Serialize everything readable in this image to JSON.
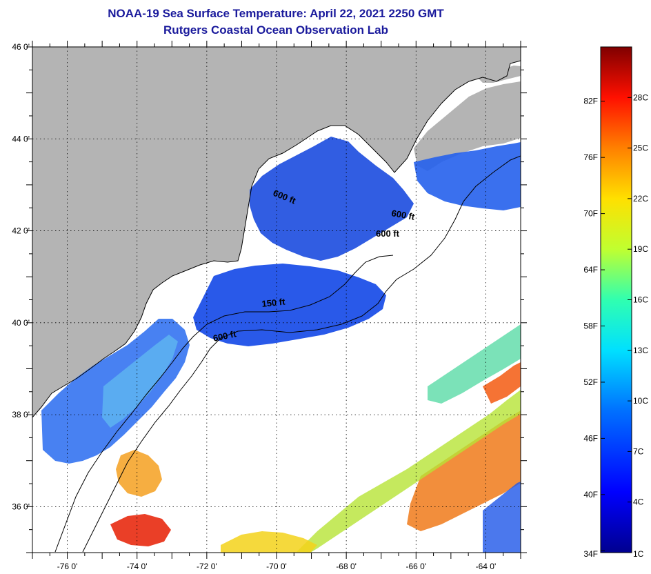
{
  "title": {
    "line1": "NOAA-19 Sea Surface Temperature:  April 22, 2021 2250 GMT",
    "line2": "Rutgers Coastal Ocean Observation Lab"
  },
  "axes": {
    "longitude_labels": [
      "-76 0'",
      "-74 0'",
      "-72 0'",
      "-70 0'",
      "-68 0'",
      "-66 0'",
      "-64 0'"
    ],
    "latitude_labels": [
      "46 0'",
      "44 0'",
      "42 0'",
      "40 0'",
      "38 0'",
      "36 0'"
    ],
    "longitude_values": [
      -76,
      -74,
      -72,
      -70,
      -68,
      -66,
      -64
    ],
    "latitude_values": [
      46,
      44,
      42,
      40,
      38,
      36
    ],
    "lon_range": [
      -77,
      -63
    ],
    "lat_range": [
      35,
      46
    ]
  },
  "contours": [
    {
      "label": "600 ft"
    },
    {
      "label": "600 ft"
    },
    {
      "label": "600 ft"
    },
    {
      "label": "150 ft"
    },
    {
      "label": "600 ft"
    }
  ],
  "colorbar": {
    "fahrenheit_labels": [
      "82F",
      "76F",
      "70F",
      "64F",
      "58F",
      "52F",
      "46F",
      "40F",
      "34F"
    ],
    "celsius_labels": [
      "28C",
      "25C",
      "22C",
      "19C",
      "16C",
      "13C",
      "10C",
      "7C",
      "4C",
      "1C"
    ],
    "celsius_values": [
      28,
      25,
      22,
      19,
      16,
      13,
      10,
      7,
      4,
      1
    ],
    "fahrenheit_values": [
      82,
      76,
      70,
      64,
      58,
      52,
      46,
      40,
      34
    ],
    "range_c": [
      1,
      31
    ]
  },
  "colors": {
    "land": "#b4b4b4",
    "cloud": "#ffffff",
    "title": "#1a1a9c",
    "cold": "#1f4fe0",
    "warm": "#f07a1a"
  }
}
